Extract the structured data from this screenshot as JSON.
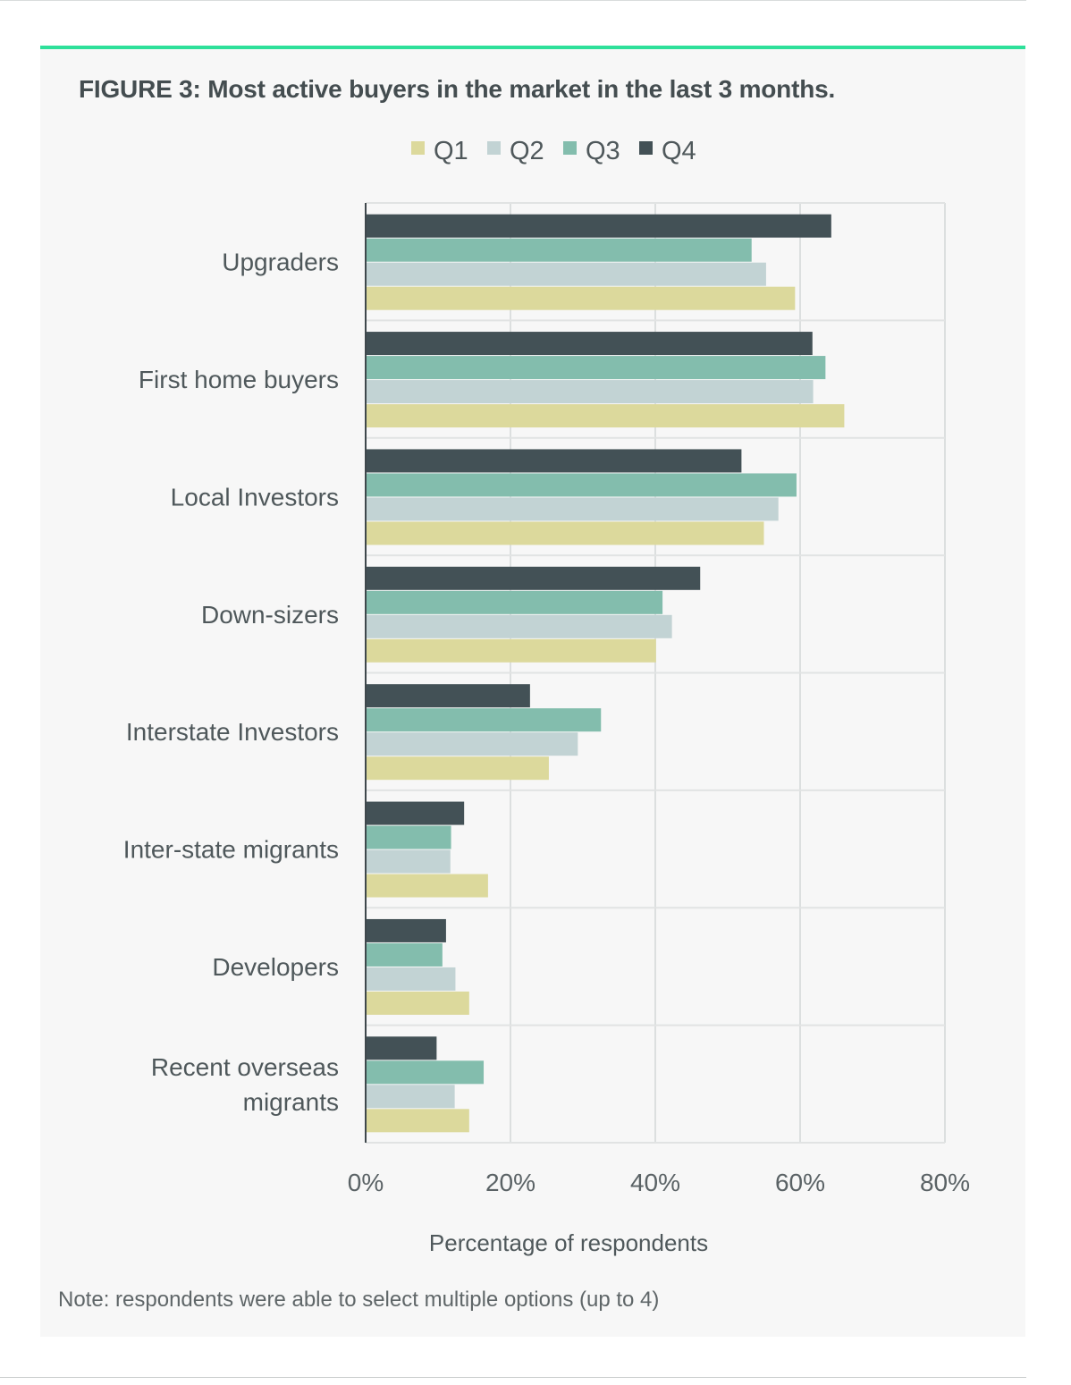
{
  "figure": {
    "title": "FIGURE 3: Most active buyers in the market in the last 3 months.",
    "note": "Note: respondents were able to select multiple options (up to 4)",
    "accent_color": "#2ee09a"
  },
  "chart_data": {
    "type": "bar",
    "orientation": "horizontal",
    "title": "FIGURE 3: Most active buyers in the market in the last 3 months.",
    "xlabel": "Percentage of respondents",
    "ylabel": "",
    "xlim": [
      0,
      80
    ],
    "xticks": [
      "0%",
      "20%",
      "40%",
      "60%",
      "80%"
    ],
    "grid": true,
    "legend_position": "top",
    "categories": [
      [
        "Upgraders"
      ],
      [
        "First home buyers"
      ],
      [
        "Local Investors"
      ],
      [
        "Down-sizers"
      ],
      [
        "Interstate Investors"
      ],
      [
        "Inter-state migrants"
      ],
      [
        "Developers"
      ],
      [
        "Recent overseas",
        "migrants"
      ]
    ],
    "series": [
      {
        "name": "Q1",
        "color": "#dcd99c",
        "values": [
          59.3,
          66.1,
          55.0,
          40.1,
          25.3,
          16.9,
          14.3,
          14.3
        ]
      },
      {
        "name": "Q2",
        "color": "#c2d3d4",
        "values": [
          55.3,
          61.8,
          57.0,
          42.3,
          29.3,
          11.7,
          12.4,
          12.3
        ]
      },
      {
        "name": "Q3",
        "color": "#83bdad",
        "values": [
          53.3,
          63.5,
          59.5,
          41.0,
          32.5,
          11.8,
          10.6,
          16.3
        ]
      },
      {
        "name": "Q4",
        "color": "#435156",
        "values": [
          64.3,
          61.7,
          51.9,
          46.2,
          22.7,
          13.6,
          11.1,
          9.8
        ]
      }
    ]
  }
}
